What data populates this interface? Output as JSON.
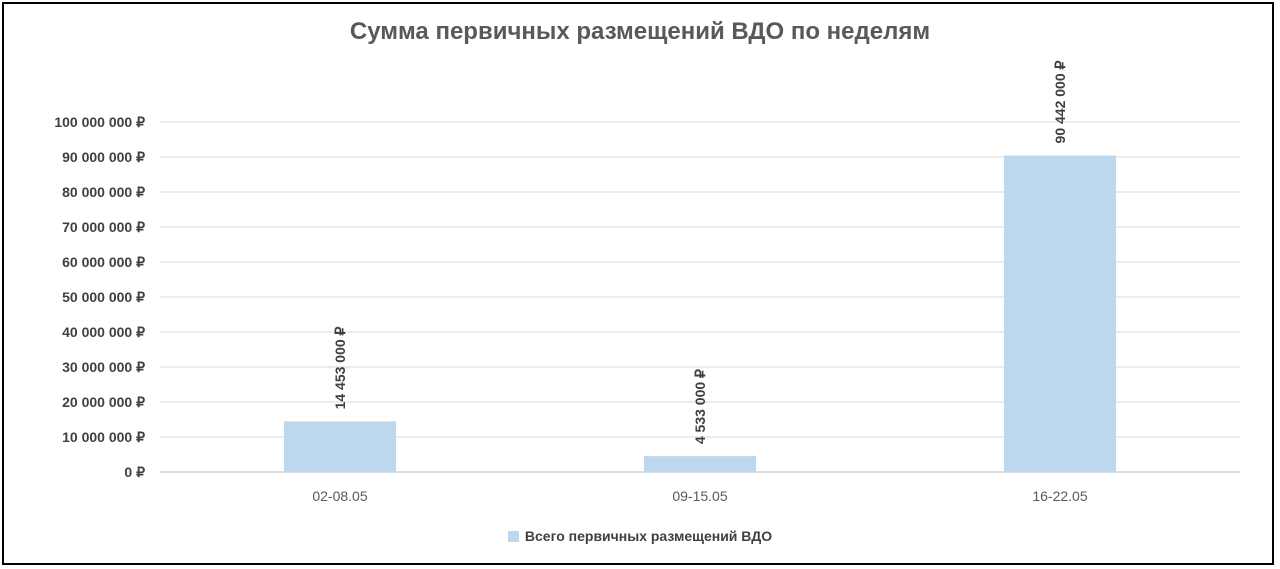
{
  "chart_data": {
    "type": "bar",
    "title": "Сумма первичных размещений ВДО по неделям",
    "categories": [
      "02-08.05",
      "09-15.05",
      "16-22.05"
    ],
    "series": [
      {
        "name": "Всего первичных размещений ВДО",
        "values": [
          14453000,
          4533000,
          90442000
        ],
        "labels": [
          "14 453 000 ₽",
          "4 533 000 ₽",
          "90 442 000 ₽"
        ],
        "color": "#bdd7ee"
      }
    ],
    "ylim": [
      0,
      100000000
    ],
    "yticks": [
      0,
      10000000,
      20000000,
      30000000,
      40000000,
      50000000,
      60000000,
      70000000,
      80000000,
      90000000,
      100000000
    ],
    "ytick_labels": [
      "0 ₽",
      "10 000 000 ₽",
      "20 000 000 ₽",
      "30 000 000 ₽",
      "40 000 000 ₽",
      "50 000 000 ₽",
      "60 000 000 ₽",
      "70 000 000 ₽",
      "80 000 000 ₽",
      "90 000 000 ₽",
      "100 000 000 ₽"
    ],
    "grid": true,
    "legend_position": "bottom"
  }
}
